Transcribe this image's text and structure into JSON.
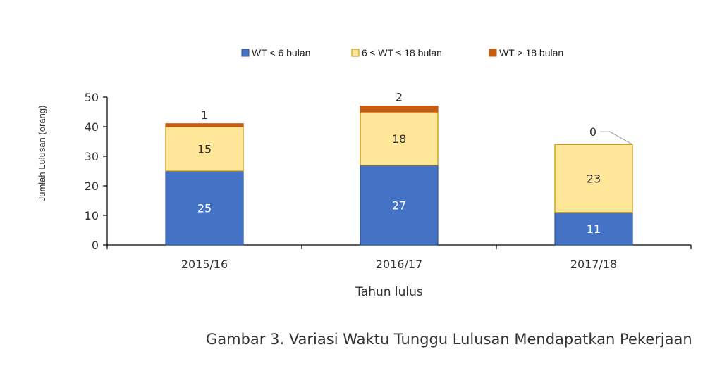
{
  "chart_data": {
    "type": "bar",
    "stacked": true,
    "categories": [
      "2015/16",
      "2016/17",
      "2017/18"
    ],
    "series": [
      {
        "name": "WT < 6 bulan",
        "values": [
          25,
          27,
          11
        ],
        "color": "#4472C4",
        "border": "#2F5597"
      },
      {
        "name": "6 ≤ WT ≤ 18 bulan",
        "values": [
          15,
          18,
          23
        ],
        "color": "#FFE699",
        "border": "#BF9000"
      },
      {
        "name": "WT > 18 bulan",
        "values": [
          1,
          2,
          0
        ],
        "color": "#C55A11",
        "border": "#C55A11"
      }
    ],
    "xlabel": "Tahun lulus",
    "ylabel": "Jumlah Lulusan (orang)",
    "ylim": [
      0,
      50
    ],
    "yticks": [
      0,
      10,
      20,
      30,
      40,
      50
    ],
    "legend_position": "top",
    "grid": false
  },
  "caption": "Gambar 3. Variasi Waktu Tunggu Lulusan Mendapatkan Pekerjaan"
}
